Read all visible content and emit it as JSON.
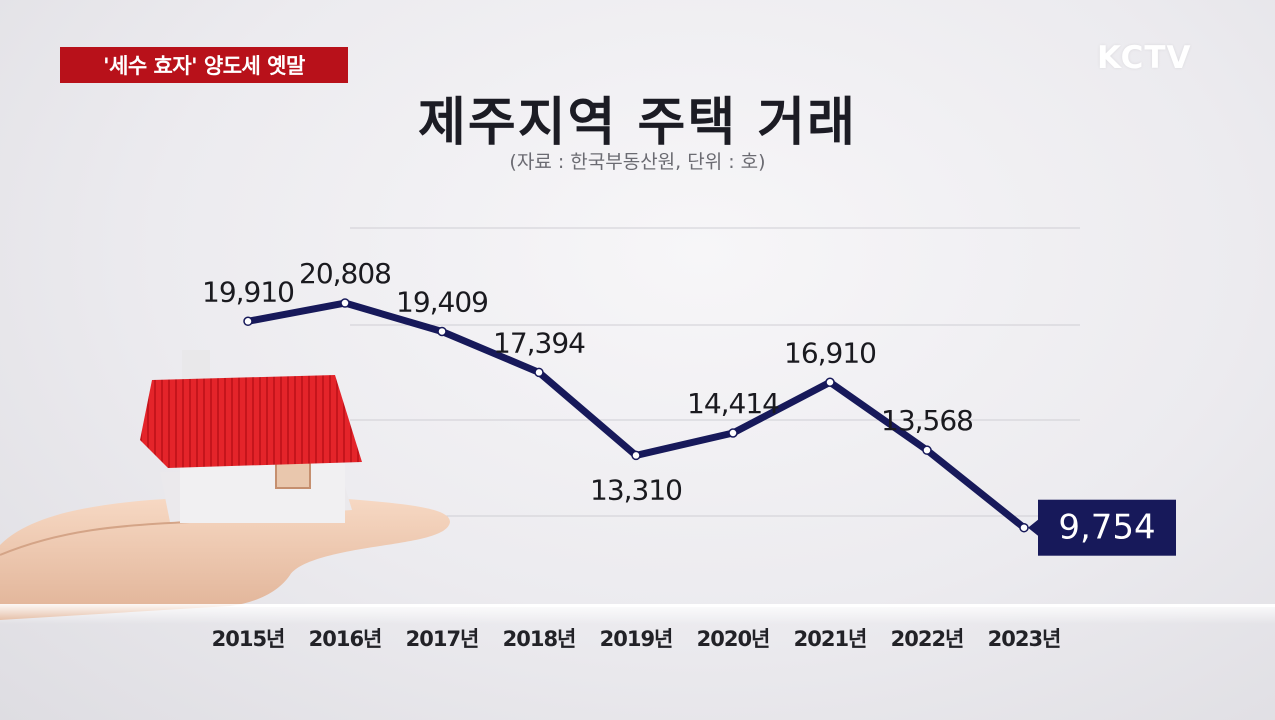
{
  "badge": {
    "text": "'세수 효자' 양도세 옛말"
  },
  "logo": {
    "text": "KCTV"
  },
  "header": {
    "title": "제주지역 주택 거래",
    "subtitle": "(자료 : 한국부동산원, 단위 : 호)"
  },
  "colors": {
    "line": "#17195a",
    "badge": "#b8111a",
    "roof": "#e4242a",
    "highlight": "#17195a"
  },
  "chart_data": {
    "type": "line",
    "title": "제주지역 주택 거래",
    "subtitle": "(자료 : 한국부동산원, 단위 : 호)",
    "categories": [
      "2015년",
      "2016년",
      "2017년",
      "2018년",
      "2019년",
      "2020년",
      "2021년",
      "2022년",
      "2023년"
    ],
    "values": [
      19910,
      20808,
      19409,
      17394,
      13310,
      14414,
      16910,
      13568,
      9754
    ],
    "labels": [
      "19,910",
      "20,808",
      "19,409",
      "17,394",
      "13,310",
      "14,414",
      "16,910",
      "13,568",
      "9,754"
    ],
    "label_position": [
      "above",
      "above",
      "above",
      "above",
      "below",
      "above",
      "above",
      "above",
      "highlight"
    ],
    "highlight_index": 8,
    "ylim": [
      6000,
      24500
    ],
    "grid": true,
    "legend": "none"
  }
}
